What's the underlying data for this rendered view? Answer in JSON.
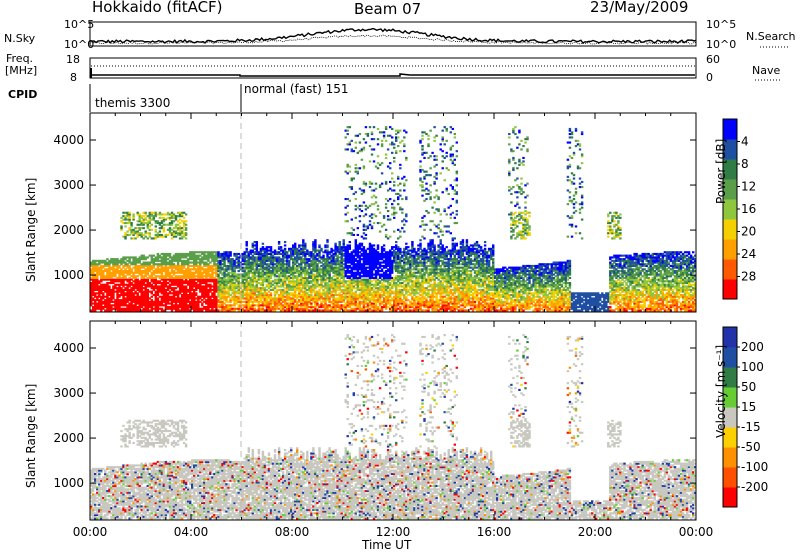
{
  "header": {
    "station": "Hokkaido (fitACF)",
    "beam": "Beam 07",
    "date": "23/May/2009"
  },
  "top_panels": {
    "nsky_label": "N.Sky",
    "nsky_ticks": [
      "10^5",
      "10^0"
    ],
    "nsearch_label": "N.Search",
    "nsearch_ticks": [
      "10^5",
      "10^0"
    ],
    "freq_label_line1": "Freq.",
    "freq_label_line2": "[MHz]",
    "freq_ticks": [
      "18",
      "8"
    ],
    "nave_label": "Nave",
    "nave_ticks": [
      "60",
      "0"
    ],
    "cpid_label": "CPID",
    "cpid_segments": [
      {
        "label": "themis 3300",
        "start": "00:00",
        "end": "06:00"
      },
      {
        "label": "normal (fast) 151",
        "start": "06:00",
        "end": "24:00"
      }
    ]
  },
  "chart_data": [
    {
      "type": "heatmap",
      "title": "",
      "xlabel": "Time UT",
      "ylabel": "Slant Range [km]",
      "x_range_hours": [
        0,
        24
      ],
      "y_range_km": [
        180,
        4600
      ],
      "y_ticks": [
        "1000",
        "2000",
        "3000",
        "4000"
      ],
      "colorbar": {
        "label": "Power [dB]",
        "ticks": [
          "4",
          "8",
          "12",
          "16",
          "20",
          "24",
          "28"
        ],
        "colors": [
          "#0000ff",
          "#1f4fa3",
          "#2f7d44",
          "#5a9e4a",
          "#8ec63f",
          "#f5d000",
          "#ffa000",
          "#ff5a00",
          "#ff0000"
        ]
      }
    },
    {
      "type": "heatmap",
      "title": "",
      "xlabel": "Time UT",
      "ylabel": "Slant Range [km]",
      "x_range_hours": [
        0,
        24
      ],
      "y_range_km": [
        180,
        4600
      ],
      "y_ticks": [
        "1000",
        "2000",
        "3000",
        "4000"
      ],
      "colorbar": {
        "label": "Velocity [m s⁻¹]",
        "ticks": [
          "200",
          "100",
          "50",
          "15",
          "-15",
          "-50",
          "-100",
          "-200"
        ],
        "colors": [
          "#2233aa",
          "#1f4fa3",
          "#2f7d44",
          "#66cc33",
          "#c8c8c0",
          "#ffd000",
          "#ff9000",
          "#ff5000",
          "#ff0000"
        ]
      }
    }
  ],
  "x_axis": {
    "label": "Time UT",
    "ticks": [
      "00:00",
      "04:00",
      "08:00",
      "12:00",
      "16:00",
      "20:00",
      "00:00"
    ]
  }
}
